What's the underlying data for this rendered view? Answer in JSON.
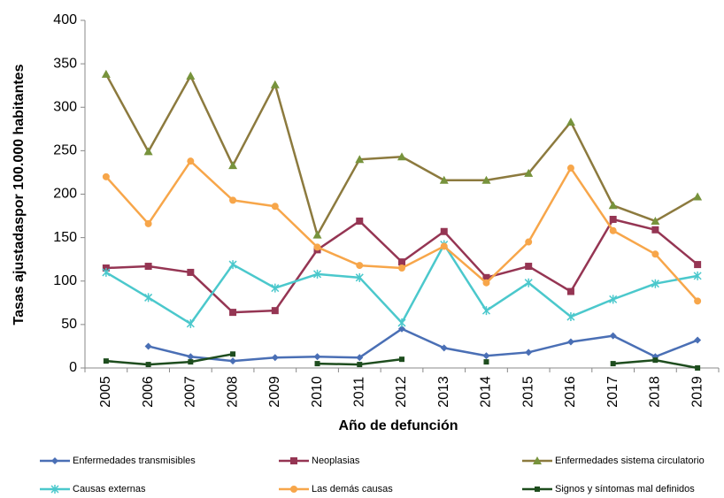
{
  "chart_data": {
    "type": "line",
    "ylabel": "Tasas ajustadaspor 100.000 habitantes",
    "xlabel": "Año de defunción",
    "categories": [
      "2005",
      "2006",
      "2007",
      "2008",
      "2009",
      "2010",
      "2011",
      "2012",
      "2013",
      "2014",
      "2015",
      "2016",
      "2017",
      "2018",
      "2019"
    ],
    "ylim": [
      0,
      400
    ],
    "yticks": [
      0,
      50,
      100,
      150,
      200,
      250,
      300,
      350,
      400
    ],
    "series": [
      {
        "name": "Enfermedades transmisibles",
        "color": "#4a6fb5",
        "marker": "diamond",
        "values": [
          null,
          25,
          13,
          8,
          12,
          13,
          12,
          45,
          23,
          14,
          18,
          30,
          37,
          13,
          32
        ]
      },
      {
        "name": "Neoplasias",
        "color": "#953553",
        "marker": "square",
        "values": [
          115,
          117,
          110,
          64,
          66,
          136,
          169,
          122,
          157,
          104,
          117,
          88,
          171,
          159,
          119
        ]
      },
      {
        "name": "Enfermedades sistema circulatorio",
        "color": "#8c7a3e",
        "marker_color": "#77933c",
        "marker": "triangle",
        "values": [
          338,
          249,
          336,
          233,
          326,
          153,
          240,
          243,
          216,
          216,
          224,
          283,
          187,
          169,
          197
        ]
      },
      {
        "name": "Causas externas",
        "color": "#4bc8cc",
        "marker": "star",
        "values": [
          110,
          81,
          51,
          119,
          92,
          108,
          104,
          52,
          142,
          66,
          98,
          59,
          79,
          97,
          106
        ]
      },
      {
        "name": "Las demás causas",
        "color": "#f7a64a",
        "marker": "circle",
        "values": [
          220,
          166,
          238,
          193,
          186,
          139,
          118,
          115,
          140,
          98,
          145,
          230,
          158,
          131,
          77
        ]
      },
      {
        "name": "Signos y síntomas mal definidos",
        "color": "#1e4d1e",
        "marker": "smallsquare",
        "values": [
          8,
          4,
          7,
          16,
          null,
          5,
          4,
          10,
          null,
          7,
          null,
          null,
          5,
          9,
          0
        ]
      }
    ]
  }
}
